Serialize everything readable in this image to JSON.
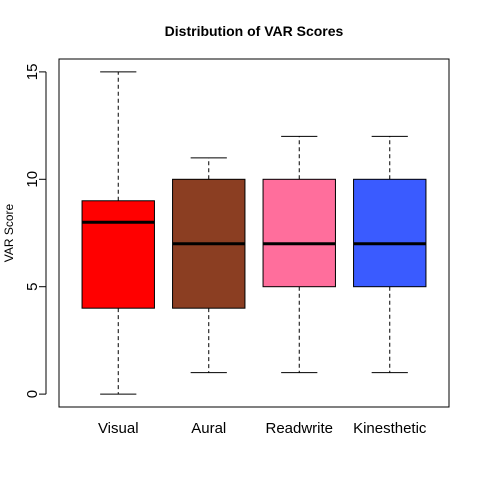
{
  "chart_data": {
    "type": "box",
    "title": "Distribution of VAR Scores",
    "xlabel": "",
    "ylabel": "VAR Score",
    "ylim": [
      -0.6,
      15.6
    ],
    "yticks": [
      0,
      5,
      10,
      15
    ],
    "grid": false,
    "categories": [
      "Visual",
      "Aural",
      "Readwrite",
      "Kinesthetic"
    ],
    "boxes": [
      {
        "category": "Visual",
        "min": 0,
        "q1": 4,
        "median": 8,
        "q3": 9,
        "max": 15,
        "color": "#FF0000"
      },
      {
        "category": "Aural",
        "min": 1,
        "q1": 4,
        "median": 7,
        "q3": 10,
        "max": 11,
        "color": "#8B3E22"
      },
      {
        "category": "Readwrite",
        "min": 1,
        "q1": 5,
        "median": 7,
        "q3": 10,
        "max": 12,
        "color": "#FF6E9C"
      },
      {
        "category": "Kinesthetic",
        "min": 1,
        "q1": 5,
        "median": 7,
        "q3": 10,
        "max": 12,
        "color": "#3A5BFF"
      }
    ]
  }
}
